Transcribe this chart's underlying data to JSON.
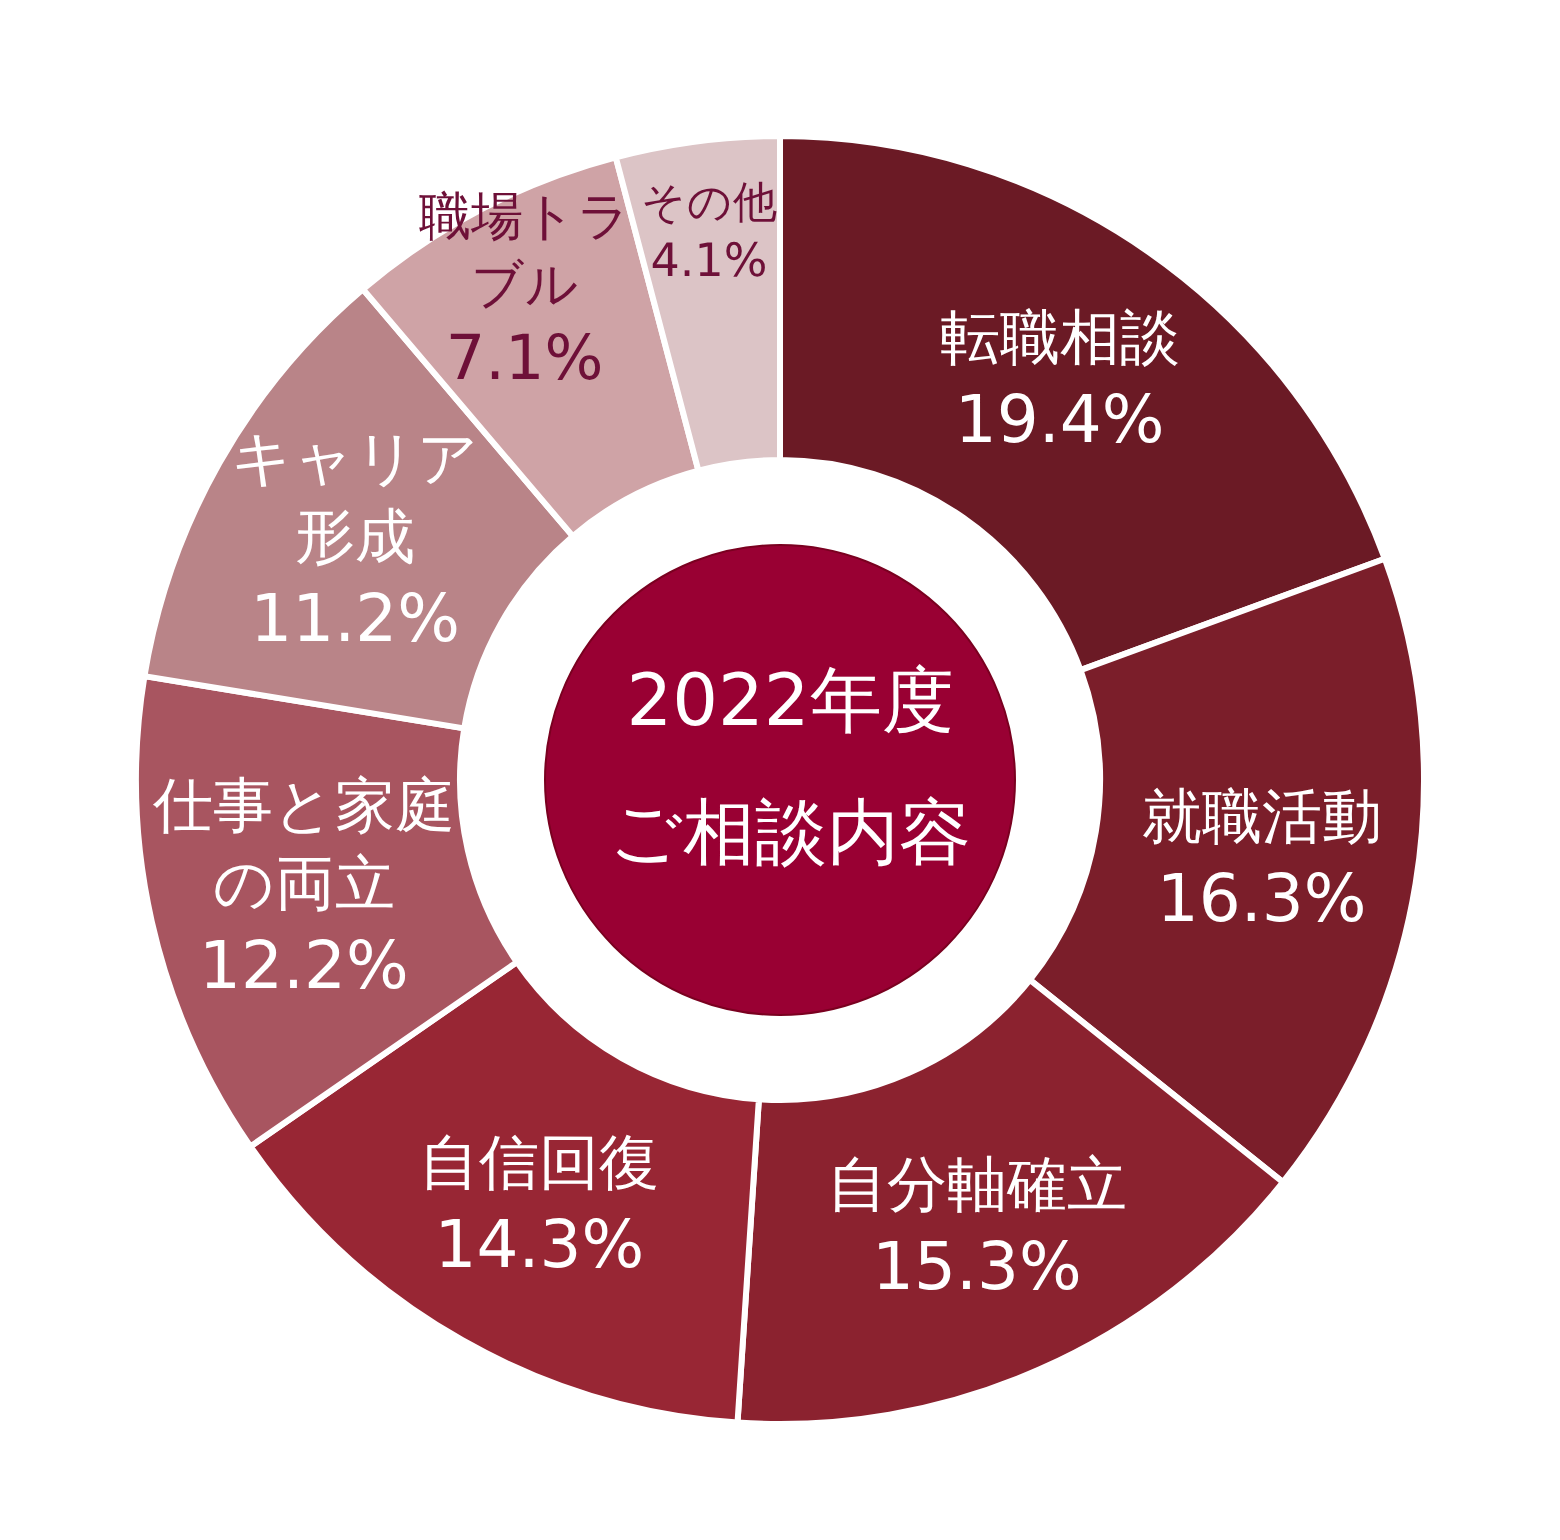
{
  "chart_data": {
    "type": "donut",
    "title": "2022年度",
    "subtitle": "ご相談内容",
    "categories": [
      "転職相談",
      "就職活動",
      "自分軸確立",
      "自信回復",
      "仕事と家庭の両立",
      "キャリア形成",
      "職場トラブル",
      "その他"
    ],
    "values": [
      19.4,
      16.3,
      15.3,
      14.3,
      12.2,
      11.2,
      7.1,
      4.1
    ],
    "colors": [
      "#6b1a25",
      "#7b1e2a",
      "#8b222f",
      "#982634",
      "#a85560",
      "#b98488",
      "#cfa3a6",
      "#dcc4c6"
    ],
    "value_labels": [
      "19.4%",
      "16.3%",
      "15.3%",
      "14.3%",
      "12.2%",
      "11.2%",
      "7.1%",
      "4.1%"
    ]
  }
}
